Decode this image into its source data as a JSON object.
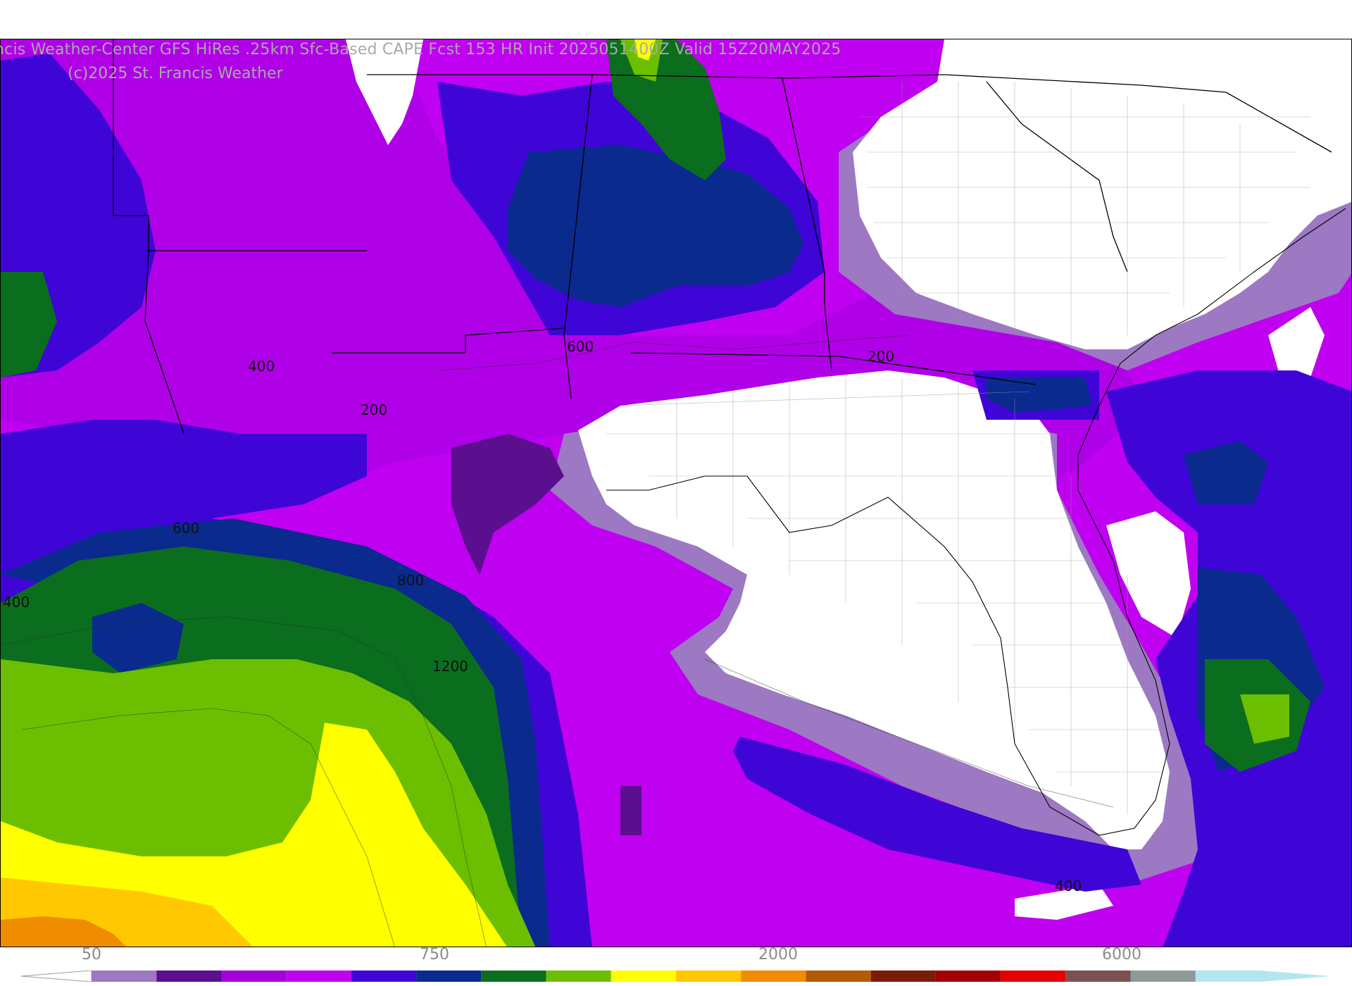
{
  "header": {
    "title": "ncis Weather-Center GFS HiRes .25km Sfc-Based CAPE  Fcst 153 HR Init 2025051400Z  Valid 15Z20MAY2025",
    "copyright": "(c)2025 St. Francis Weather"
  },
  "contour_labels": {
    "l400_ark": "400",
    "l200_miss": "200",
    "l600_ala": "600",
    "l200_ga": "200",
    "l600_la": "600",
    "l800_coast": "800",
    "l1200_gulf": "1200",
    "l400_west": "400",
    "l400_keys": "400"
  },
  "colorbar": {
    "tick_labels": [
      "50",
      "750",
      "2000",
      "6000"
    ],
    "colors": [
      "#9c79c2",
      "#5b0f8f",
      "#a600d9",
      "#c000f0",
      "#3e05d6",
      "#0a2a8e",
      "#0b6e1f",
      "#6cbf00",
      "#ffff00",
      "#ffc800",
      "#f08c00",
      "#b45a00",
      "#7a1d06",
      "#a40000",
      "#e40000",
      "#7a5050",
      "#8c9a9a",
      "#b4e6f0"
    ]
  },
  "legend_colors": {
    "land_no_cape": "#ffffff",
    "state_border": "#000000",
    "county_border": "#9a9a9a"
  }
}
